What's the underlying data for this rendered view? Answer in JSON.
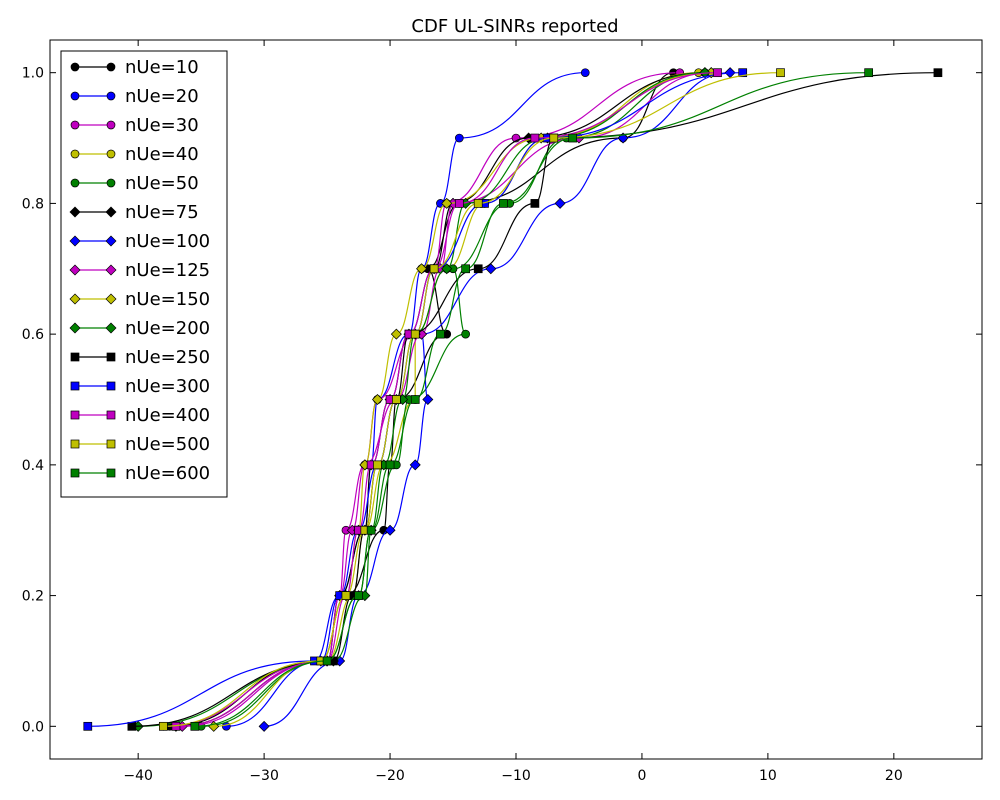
{
  "chart_data": {
    "type": "line",
    "title": "CDF UL-SINRs reported",
    "xlabel": "",
    "ylabel": "",
    "xlim": [
      -47,
      27
    ],
    "ylim": [
      -0.05,
      1.05
    ],
    "x_ticks": [
      -40,
      -30,
      -20,
      -10,
      0,
      10,
      20
    ],
    "x_tick_labels": [
      "−40",
      "−30",
      "−20",
      "−10",
      "0",
      "10",
      "20"
    ],
    "y_ticks": [
      0.0,
      0.2,
      0.4,
      0.6,
      0.8,
      1.0
    ],
    "y_tick_labels": [
      "0.0",
      "0.2",
      "0.4",
      "0.6",
      "0.8",
      "1.0"
    ],
    "grid": false,
    "legend_position": "top-left",
    "marker_y": [
      0,
      0.1,
      0.2,
      0.3,
      0.4,
      0.5,
      0.6,
      0.7,
      0.8,
      0.9,
      1.0
    ],
    "series": [
      {
        "name": "nUe=10",
        "color": "#000000",
        "marker": "circle",
        "x_at_marker_y": [
          -37.5,
          -25.5,
          -23.5,
          -20.5,
          -20.0,
          -19.5,
          -15.5,
          -17.0,
          -14.5,
          -1.5,
          2.5
        ]
      },
      {
        "name": "nUe=20",
        "color": "#0000ff",
        "marker": "circle",
        "x_at_marker_y": [
          -33.0,
          -25.5,
          -24.0,
          -22.0,
          -21.5,
          -21.0,
          -18.5,
          -17.5,
          -16.0,
          -14.5,
          -4.5
        ]
      },
      {
        "name": "nUe=30",
        "color": "#bf00bf",
        "marker": "circle",
        "x_at_marker_y": [
          -38.0,
          -25.0,
          -24.0,
          -23.5,
          -22.0,
          -21.0,
          -18.0,
          -16.5,
          -15.5,
          -10.0,
          3.0
        ]
      },
      {
        "name": "nUe=40",
        "color": "#bfbf00",
        "marker": "circle",
        "x_at_marker_y": [
          -37.0,
          -25.0,
          -23.0,
          -22.0,
          -20.5,
          -18.0,
          -18.0,
          -15.5,
          -12.5,
          -7.5,
          4.5
        ]
      },
      {
        "name": "nUe=50",
        "color": "#008000",
        "marker": "circle",
        "x_at_marker_y": [
          -35.0,
          -25.0,
          -22.5,
          -21.5,
          -19.5,
          -18.5,
          -14.0,
          -15.0,
          -10.5,
          -6.0,
          5.0
        ]
      },
      {
        "name": "nUe=75",
        "color": "#000000",
        "marker": "diamond",
        "x_at_marker_y": [
          -37.0,
          -25.0,
          -24.0,
          -22.0,
          -21.5,
          -20.0,
          -18.5,
          -16.5,
          -15.0,
          -9.0,
          5.0
        ]
      },
      {
        "name": "nUe=100",
        "color": "#0000ff",
        "marker": "diamond",
        "x_at_marker_y": [
          -30.0,
          -24.0,
          -22.5,
          -20.0,
          -18.0,
          -17.0,
          -17.5,
          -12.0,
          -6.5,
          -1.5,
          7.0
        ]
      },
      {
        "name": "nUe=125",
        "color": "#bf00bf",
        "marker": "diamond",
        "x_at_marker_y": [
          -36.5,
          -25.0,
          -24.0,
          -23.0,
          -22.0,
          -19.5,
          -17.5,
          -16.0,
          -15.0,
          -5.0,
          5.5
        ]
      },
      {
        "name": "nUe=150",
        "color": "#bfbf00",
        "marker": "diamond",
        "x_at_marker_y": [
          -34.0,
          -25.5,
          -23.5,
          -22.5,
          -22.0,
          -21.0,
          -19.5,
          -17.5,
          -15.5,
          -8.0,
          5.5
        ]
      },
      {
        "name": "nUe=200",
        "color": "#008000",
        "marker": "diamond",
        "x_at_marker_y": [
          -40.0,
          -24.5,
          -22.0,
          -21.5,
          -20.5,
          -19.0,
          -18.0,
          -15.5,
          -14.0,
          -7.5,
          5.0
        ]
      },
      {
        "name": "nUe=250",
        "color": "#000000",
        "marker": "square",
        "x_at_marker_y": [
          -40.5,
          -24.5,
          -23.0,
          -22.0,
          -21.0,
          -19.5,
          -18.5,
          -13.0,
          -8.5,
          -7.0,
          23.5
        ]
      },
      {
        "name": "nUe=300",
        "color": "#0000ff",
        "marker": "square",
        "x_at_marker_y": [
          -44.0,
          -26.0,
          -24.0,
          -22.5,
          -21.0,
          -19.5,
          -18.0,
          -16.5,
          -12.5,
          -7.5,
          8.0
        ]
      },
      {
        "name": "nUe=400",
        "color": "#bf00bf",
        "marker": "square",
        "x_at_marker_y": [
          -37.0,
          -25.0,
          -23.5,
          -22.5,
          -21.5,
          -20.0,
          -18.5,
          -16.5,
          -14.5,
          -8.5,
          6.0
        ]
      },
      {
        "name": "nUe=500",
        "color": "#bfbf00",
        "marker": "square",
        "x_at_marker_y": [
          -38.0,
          -25.5,
          -23.5,
          -22.0,
          -21.0,
          -19.5,
          -18.0,
          -16.5,
          -13.0,
          -7.0,
          11.0
        ]
      },
      {
        "name": "nUe=600",
        "color": "#008000",
        "marker": "square",
        "x_at_marker_y": [
          -35.5,
          -25.0,
          -22.5,
          -21.5,
          -20.0,
          -18.0,
          -16.0,
          -14.0,
          -11.0,
          -5.5,
          18.0
        ]
      }
    ]
  }
}
